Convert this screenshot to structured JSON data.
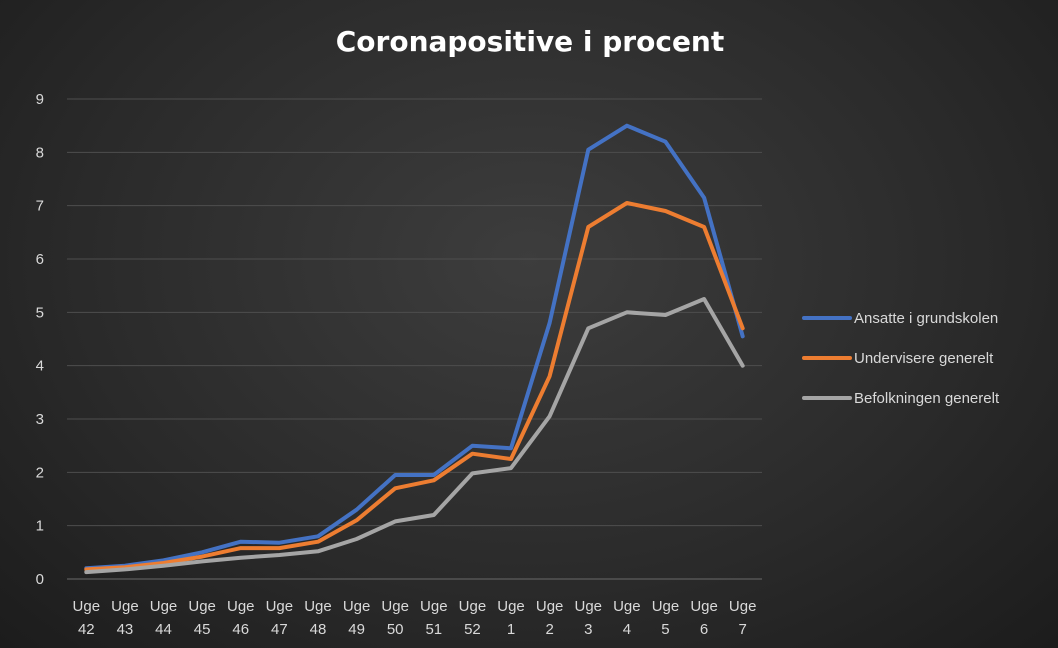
{
  "chart_data": {
    "type": "line",
    "title": "Coronapositive  i procent",
    "xlabel": "",
    "ylabel": "",
    "ylim": [
      0,
      9
    ],
    "yticks": [
      0,
      1,
      2,
      3,
      4,
      5,
      6,
      7,
      8,
      9
    ],
    "grid": true,
    "legend_position": "right",
    "categories": [
      [
        "Uge",
        "42"
      ],
      [
        "Uge",
        "43"
      ],
      [
        "Uge",
        "44"
      ],
      [
        "Uge",
        "45"
      ],
      [
        "Uge",
        "46"
      ],
      [
        "Uge",
        "47"
      ],
      [
        "Uge",
        "48"
      ],
      [
        "Uge",
        "49"
      ],
      [
        "Uge",
        "50"
      ],
      [
        "Uge",
        "51"
      ],
      [
        "Uge",
        "52"
      ],
      [
        "Uge",
        "1"
      ],
      [
        "Uge",
        "2"
      ],
      [
        "Uge",
        "3"
      ],
      [
        "Uge",
        "4"
      ],
      [
        "Uge",
        "5"
      ],
      [
        "Uge",
        "6"
      ],
      [
        "Uge",
        "7"
      ]
    ],
    "series": [
      {
        "name": "Ansatte i grundskolen",
        "color": "#4472c4",
        "values": [
          0.2,
          0.25,
          0.35,
          0.5,
          0.7,
          0.68,
          0.8,
          1.3,
          1.95,
          1.95,
          2.5,
          2.45,
          4.8,
          8.05,
          8.5,
          8.2,
          7.15,
          4.55
        ]
      },
      {
        "name": "Undervisere generelt",
        "color": "#ed7d31",
        "values": [
          0.18,
          0.22,
          0.3,
          0.42,
          0.58,
          0.58,
          0.7,
          1.1,
          1.7,
          1.85,
          2.35,
          2.25,
          3.8,
          6.6,
          7.05,
          6.9,
          6.6,
          4.7
        ]
      },
      {
        "name": "Befolkningen generelt",
        "color": "#a5a5a5",
        "values": [
          0.13,
          0.18,
          0.25,
          0.33,
          0.4,
          0.45,
          0.52,
          0.75,
          1.08,
          1.2,
          1.98,
          2.08,
          3.05,
          4.7,
          5.0,
          4.95,
          5.25,
          4.0
        ]
      }
    ]
  }
}
